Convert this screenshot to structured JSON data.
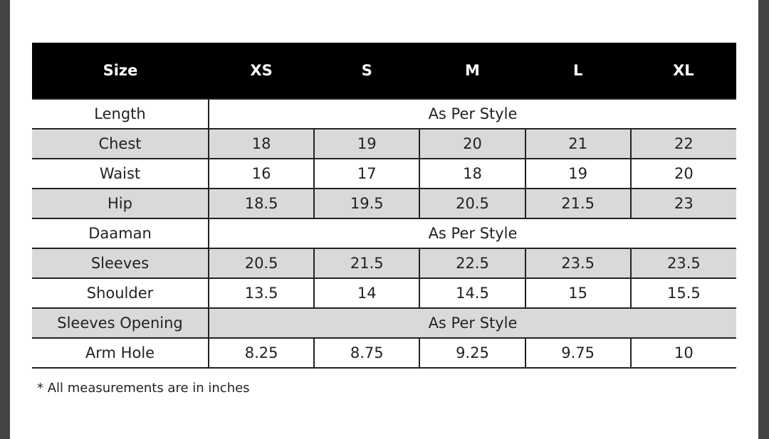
{
  "table": {
    "headers": [
      "Size",
      "XS",
      "S",
      "M",
      "L",
      "XL"
    ],
    "rows": [
      {
        "label": "Length",
        "span": "As Per Style",
        "shaded": false
      },
      {
        "label": "Chest",
        "values": [
          "18",
          "19",
          "20",
          "21",
          "22"
        ],
        "shaded": true
      },
      {
        "label": "Waist",
        "values": [
          "16",
          "17",
          "18",
          "19",
          "20"
        ],
        "shaded": false
      },
      {
        "label": "Hip",
        "values": [
          "18.5",
          "19.5",
          "20.5",
          "21.5",
          "23"
        ],
        "shaded": true
      },
      {
        "label": "Daaman",
        "span": "As Per Style",
        "shaded": false
      },
      {
        "label": "Sleeves",
        "values": [
          "20.5",
          "21.5",
          "22.5",
          "23.5",
          "23.5"
        ],
        "shaded": true
      },
      {
        "label": "Shoulder",
        "values": [
          "13.5",
          "14",
          "14.5",
          "15",
          "15.5"
        ],
        "shaded": false
      },
      {
        "label": "Sleeves Opening",
        "span": "As Per Style",
        "shaded": true
      },
      {
        "label": "Arm Hole",
        "values": [
          "8.25",
          "8.75",
          "9.25",
          "9.75",
          "10"
        ],
        "shaded": false
      }
    ]
  },
  "note": "* All measurements are in inches"
}
